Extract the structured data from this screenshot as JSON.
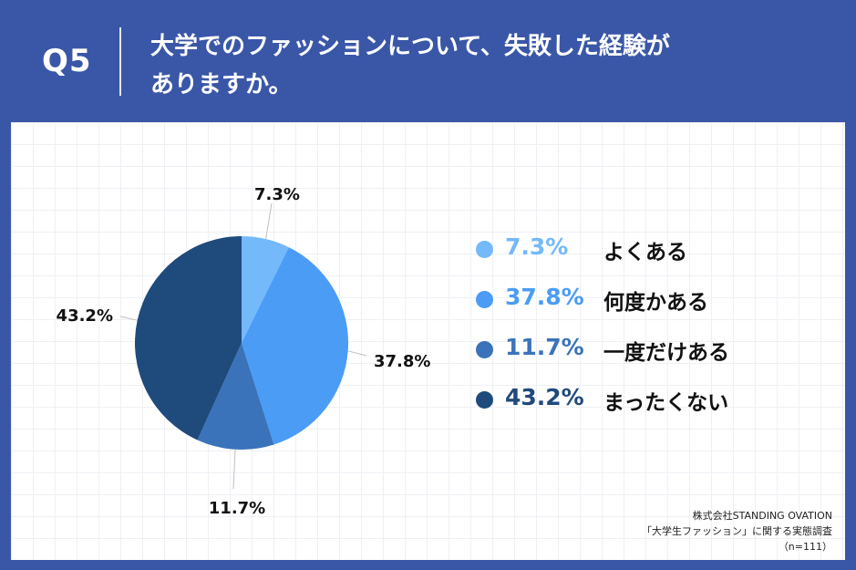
{
  "header": {
    "question_number": "Q5",
    "title_line1": "大学でのファッションについて、失敗した経験が",
    "title_line2": "ありますか。"
  },
  "chart_data": {
    "type": "pie",
    "categories": [
      "よくある",
      "何度かある",
      "一度だけある",
      "まったくない"
    ],
    "values": [
      7.3,
      37.8,
      11.7,
      43.2
    ],
    "value_labels": [
      "7.3%",
      "37.8%",
      "11.7%",
      "43.2%"
    ],
    "colors": [
      "#74b9f9",
      "#4a9cf5",
      "#3a73ba",
      "#1f4a7c"
    ],
    "legend_placement": "right"
  },
  "source": {
    "line1": "株式会社STANDING OVATION",
    "line2": "「大学生ファッション」に関する実態調査",
    "line3": "（n=111）"
  }
}
